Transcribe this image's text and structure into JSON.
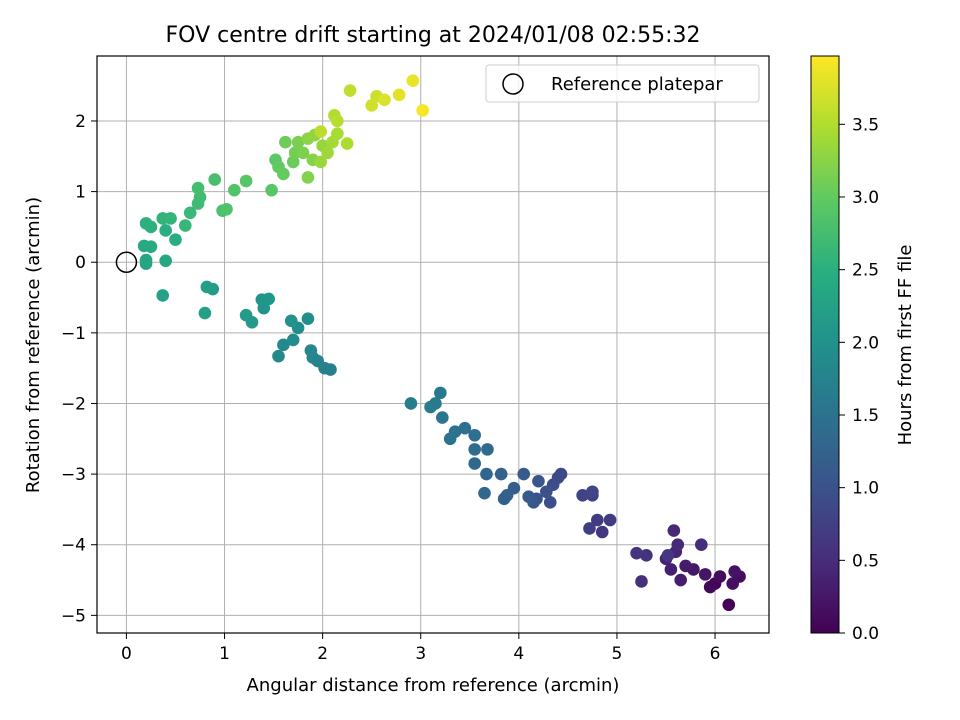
{
  "chart_data": {
    "type": "scatter",
    "title": "FOV centre drift starting at 2024/01/08 02:55:32",
    "xlabel": "Angular distance from reference (arcmin)",
    "ylabel": "Rotation from reference (arcmin)",
    "xlim": [
      -0.3,
      6.55
    ],
    "ylim": [
      -5.25,
      2.92
    ],
    "xticks": [
      0,
      1,
      2,
      3,
      4,
      5,
      6
    ],
    "yticks": [
      -5,
      -4,
      -3,
      -2,
      -1,
      0,
      1,
      2
    ],
    "grid": true,
    "legend": {
      "position": "top-right",
      "entries": [
        "Reference platepar"
      ]
    },
    "reference_point": {
      "x": 0,
      "y": 0
    },
    "colorbar": {
      "label": "Hours from first FF file",
      "colormap": "viridis",
      "range": [
        0,
        3.97
      ],
      "ticks": [
        "0.0",
        "0.5",
        "1.0",
        "1.5",
        "2.0",
        "2.5",
        "3.0",
        "3.5"
      ]
    },
    "points": [
      [
        6.14,
        -4.85,
        0.02
      ],
      [
        6.0,
        -4.55,
        0.05
      ],
      [
        5.95,
        -4.6,
        0.08
      ],
      [
        6.05,
        -4.45,
        0.11
      ],
      [
        6.25,
        -4.45,
        0.14
      ],
      [
        6.18,
        -4.55,
        0.17
      ],
      [
        6.2,
        -4.38,
        0.2
      ],
      [
        5.9,
        -4.42,
        0.23
      ],
      [
        5.78,
        -4.35,
        0.26
      ],
      [
        5.7,
        -4.3,
        0.29
      ],
      [
        5.65,
        -4.5,
        0.32
      ],
      [
        5.55,
        -4.35,
        0.35
      ],
      [
        5.5,
        -4.2,
        0.38
      ],
      [
        5.6,
        -4.1,
        0.41
      ],
      [
        5.58,
        -3.8,
        0.44
      ],
      [
        5.62,
        -4.0,
        0.47
      ],
      [
        5.86,
        -4.0,
        0.5
      ],
      [
        5.25,
        -4.52,
        0.53
      ],
      [
        5.3,
        -4.15,
        0.56
      ],
      [
        5.2,
        -4.12,
        0.59
      ],
      [
        5.52,
        -4.15,
        0.62
      ],
      [
        4.85,
        -3.82,
        0.65
      ],
      [
        4.8,
        -3.65,
        0.68
      ],
      [
        4.93,
        -3.65,
        0.71
      ],
      [
        4.72,
        -3.77,
        0.74
      ],
      [
        4.75,
        -3.3,
        0.77
      ],
      [
        4.65,
        -3.3,
        0.8
      ],
      [
        4.75,
        -3.25,
        0.83
      ],
      [
        4.43,
        -3.0,
        0.86
      ],
      [
        4.4,
        -3.05,
        0.89
      ],
      [
        4.35,
        -3.15,
        0.92
      ],
      [
        4.32,
        -3.4,
        0.95
      ],
      [
        4.28,
        -3.25,
        0.98
      ],
      [
        4.18,
        -3.35,
        1.01
      ],
      [
        4.2,
        -3.1,
        1.04
      ],
      [
        4.15,
        -3.4,
        1.07
      ],
      [
        4.1,
        -3.32,
        1.1
      ],
      [
        4.05,
        -3.0,
        1.13
      ],
      [
        3.95,
        -3.2,
        1.16
      ],
      [
        3.88,
        -3.3,
        1.19
      ],
      [
        3.85,
        -3.35,
        1.22
      ],
      [
        3.82,
        -3.0,
        1.25
      ],
      [
        3.67,
        -3.0,
        1.28
      ],
      [
        3.65,
        -3.27,
        1.31
      ],
      [
        3.55,
        -2.85,
        1.34
      ],
      [
        3.68,
        -2.65,
        1.37
      ],
      [
        3.55,
        -2.65,
        1.4
      ],
      [
        3.55,
        -2.45,
        1.43
      ],
      [
        3.45,
        -2.35,
        1.46
      ],
      [
        3.35,
        -2.4,
        1.49
      ],
      [
        3.3,
        -2.5,
        1.52
      ],
      [
        3.22,
        -2.2,
        1.55
      ],
      [
        3.2,
        -1.85,
        1.58
      ],
      [
        3.15,
        -2.0,
        1.61
      ],
      [
        3.1,
        -2.05,
        1.64
      ],
      [
        2.9,
        -2.0,
        1.67
      ],
      [
        2.08,
        -1.52,
        1.7
      ],
      [
        2.02,
        -1.5,
        1.73
      ],
      [
        1.95,
        -1.4,
        1.76
      ],
      [
        1.9,
        -1.35,
        1.79
      ],
      [
        1.88,
        -1.25,
        1.82
      ],
      [
        1.6,
        -1.17,
        1.85
      ],
      [
        1.55,
        -1.33,
        1.88
      ],
      [
        1.7,
        -1.1,
        1.91
      ],
      [
        1.75,
        -0.93,
        1.94
      ],
      [
        1.85,
        -0.8,
        1.97
      ],
      [
        1.68,
        -0.83,
        2.0
      ],
      [
        1.4,
        -0.65,
        2.03
      ],
      [
        1.38,
        -0.53,
        2.06
      ],
      [
        1.45,
        -0.52,
        2.09
      ],
      [
        1.28,
        -0.85,
        2.12
      ],
      [
        1.22,
        -0.75,
        2.15
      ],
      [
        0.88,
        -0.38,
        2.18
      ],
      [
        0.82,
        -0.35,
        2.21
      ],
      [
        0.8,
        -0.72,
        2.24
      ],
      [
        0.37,
        -0.47,
        2.27
      ],
      [
        0.2,
        -0.02,
        2.3
      ],
      [
        0.2,
        0.03,
        2.33
      ],
      [
        0.4,
        0.02,
        2.36
      ],
      [
        0.25,
        0.22,
        2.39
      ],
      [
        0.18,
        0.23,
        2.42
      ],
      [
        0.5,
        0.32,
        2.45
      ],
      [
        0.4,
        0.45,
        2.48
      ],
      [
        0.25,
        0.5,
        2.51
      ],
      [
        0.2,
        0.55,
        2.54
      ],
      [
        0.37,
        0.62,
        2.57
      ],
      [
        0.45,
        0.62,
        2.6
      ],
      [
        0.6,
        0.52,
        2.63
      ],
      [
        0.65,
        0.7,
        2.66
      ],
      [
        0.73,
        0.83,
        2.69
      ],
      [
        0.75,
        0.92,
        2.72
      ],
      [
        0.73,
        1.05,
        2.75
      ],
      [
        0.9,
        1.17,
        2.78
      ],
      [
        0.98,
        0.73,
        2.81
      ],
      [
        1.02,
        0.75,
        2.84
      ],
      [
        1.1,
        1.02,
        2.87
      ],
      [
        1.22,
        1.15,
        2.9
      ],
      [
        1.48,
        1.02,
        2.93
      ],
      [
        1.52,
        1.45,
        2.96
      ],
      [
        1.55,
        1.35,
        2.99
      ],
      [
        1.6,
        1.25,
        3.02
      ],
      [
        1.7,
        1.42,
        3.05
      ],
      [
        1.62,
        1.7,
        3.08
      ],
      [
        1.72,
        1.55,
        3.11
      ],
      [
        1.75,
        1.7,
        3.14
      ],
      [
        1.8,
        1.55,
        3.17
      ],
      [
        1.85,
        1.2,
        3.2
      ],
      [
        1.9,
        1.45,
        3.23
      ],
      [
        1.85,
        1.75,
        3.26
      ],
      [
        1.92,
        1.8,
        3.29
      ],
      [
        2.0,
        1.65,
        3.32
      ],
      [
        1.98,
        1.42,
        3.35
      ],
      [
        2.05,
        1.55,
        3.38
      ],
      [
        2.1,
        1.7,
        3.41
      ],
      [
        2.15,
        1.82,
        3.44
      ],
      [
        2.25,
        1.68,
        3.47
      ],
      [
        2.12,
        2.08,
        3.5
      ],
      [
        2.15,
        2.0,
        3.53
      ],
      [
        1.98,
        1.85,
        3.56
      ],
      [
        2.28,
        2.43,
        3.59
      ],
      [
        2.55,
        2.35,
        3.65
      ],
      [
        2.5,
        2.22,
        3.7
      ],
      [
        2.63,
        2.3,
        3.75
      ],
      [
        2.78,
        2.37,
        3.8
      ],
      [
        2.92,
        2.57,
        3.85
      ],
      [
        3.02,
        2.15,
        3.92
      ]
    ]
  }
}
